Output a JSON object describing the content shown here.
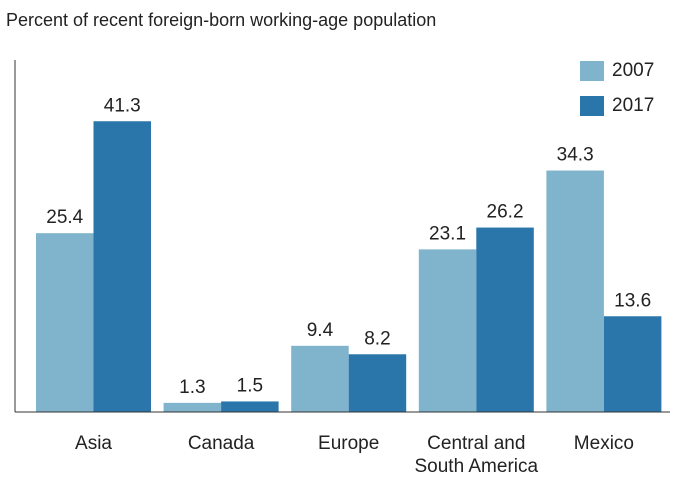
{
  "chart_data": {
    "type": "bar",
    "title": "Percent of recent foreign-born working-age population",
    "categories": [
      "Asia",
      "Canada",
      "Europe",
      "Central and South America",
      "Mexico"
    ],
    "series": [
      {
        "name": "2007",
        "color": "#7fb4cc",
        "values": [
          25.4,
          1.3,
          9.4,
          23.1,
          34.3
        ]
      },
      {
        "name": "2017",
        "color": "#2a76aa",
        "values": [
          41.3,
          1.5,
          8.2,
          26.2,
          13.6
        ]
      }
    ],
    "ylim": [
      0,
      50
    ],
    "legend": "top-right"
  }
}
